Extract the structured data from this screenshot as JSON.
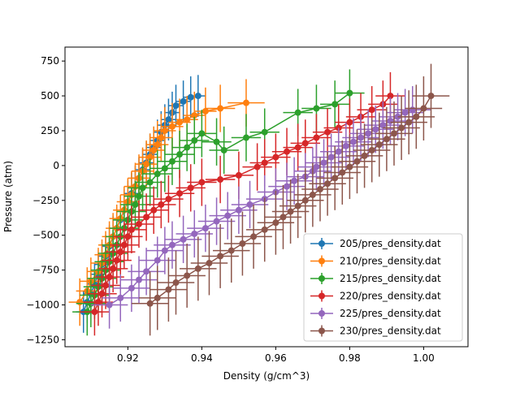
{
  "chart_data": {
    "type": "line",
    "title": "",
    "xlabel": "Density (g/cm^3)",
    "ylabel": "Pressure (atm)",
    "xlim": [
      0.903,
      1.012
    ],
    "ylim": [
      -1300,
      850
    ],
    "xticks": [
      0.92,
      0.94,
      0.96,
      0.98,
      1.0
    ],
    "xtick_labels": [
      "0.92",
      "0.94",
      "0.96",
      "0.98",
      "1.00"
    ],
    "yticks": [
      -1250,
      -1000,
      -750,
      -500,
      -250,
      0,
      250,
      500,
      750
    ],
    "ytick_labels": [
      "−1250",
      "−1000",
      "−750",
      "−500",
      "−250",
      "0",
      "250",
      "500",
      "750"
    ],
    "legend_position": "lower-right",
    "grid": false,
    "series": [
      {
        "name": "205/pres_density.dat",
        "color": "#1f77b4",
        "x": [
          0.908,
          0.909,
          0.91,
          0.911,
          0.912,
          0.913,
          0.914,
          0.915,
          0.916,
          0.917,
          0.918,
          0.919,
          0.92,
          0.921,
          0.922,
          0.923,
          0.924,
          0.925,
          0.926,
          0.927,
          0.928,
          0.929,
          0.93,
          0.931,
          0.932,
          0.933,
          0.935,
          0.937,
          0.939
        ],
        "y": [
          -1050,
          -980,
          -920,
          -850,
          -780,
          -710,
          -650,
          -580,
          -510,
          -450,
          -390,
          -320,
          -260,
          -200,
          -150,
          -90,
          -30,
          20,
          80,
          130,
          180,
          240,
          290,
          330,
          380,
          430,
          460,
          490,
          500
        ],
        "xerr": [
          0.002,
          0.002,
          0.002,
          0.002,
          0.002,
          0.002,
          0.002,
          0.002,
          0.002,
          0.002,
          0.002,
          0.002,
          0.002,
          0.002,
          0.002,
          0.002,
          0.002,
          0.002,
          0.002,
          0.002,
          0.002,
          0.002,
          0.002,
          0.002,
          0.002,
          0.002,
          0.002,
          0.002,
          0.002
        ],
        "yerr": [
          150,
          150,
          150,
          150,
          150,
          150,
          150,
          150,
          150,
          150,
          150,
          150,
          150,
          150,
          150,
          150,
          150,
          150,
          150,
          150,
          150,
          150,
          150,
          150,
          150,
          150,
          150,
          150,
          150
        ]
      },
      {
        "name": "210/pres_density.dat",
        "color": "#ff7f0e",
        "x": [
          0.907,
          0.909,
          0.91,
          0.912,
          0.913,
          0.914,
          0.915,
          0.916,
          0.917,
          0.918,
          0.919,
          0.92,
          0.921,
          0.922,
          0.923,
          0.924,
          0.925,
          0.926,
          0.927,
          0.928,
          0.929,
          0.93,
          0.932,
          0.934,
          0.936,
          0.938,
          0.941,
          0.945,
          0.952
        ],
        "y": [
          -980,
          -900,
          -830,
          -760,
          -700,
          -640,
          -570,
          -510,
          -450,
          -380,
          -320,
          -260,
          -210,
          -150,
          -90,
          -40,
          10,
          60,
          110,
          150,
          200,
          250,
          280,
          310,
          330,
          360,
          390,
          410,
          450
        ],
        "xerr": [
          0.003,
          0.003,
          0.003,
          0.003,
          0.003,
          0.003,
          0.003,
          0.003,
          0.003,
          0.003,
          0.003,
          0.003,
          0.003,
          0.003,
          0.003,
          0.003,
          0.003,
          0.003,
          0.003,
          0.003,
          0.003,
          0.003,
          0.003,
          0.003,
          0.003,
          0.003,
          0.003,
          0.004,
          0.005
        ],
        "yerr": [
          170,
          170,
          170,
          170,
          170,
          170,
          170,
          170,
          170,
          170,
          170,
          170,
          170,
          170,
          170,
          170,
          170,
          170,
          170,
          170,
          170,
          170,
          170,
          170,
          170,
          170,
          170,
          170,
          170
        ]
      },
      {
        "name": "215/pres_density.dat",
        "color": "#2ca02c",
        "x": [
          0.909,
          0.91,
          0.911,
          0.912,
          0.913,
          0.914,
          0.915,
          0.916,
          0.917,
          0.918,
          0.919,
          0.92,
          0.921,
          0.922,
          0.923,
          0.924,
          0.926,
          0.928,
          0.93,
          0.932,
          0.934,
          0.936,
          0.938,
          0.94,
          0.944,
          0.946,
          0.952,
          0.957,
          0.966,
          0.971,
          0.976,
          0.98
        ],
        "y": [
          -1050,
          -990,
          -930,
          -870,
          -810,
          -750,
          -690,
          -630,
          -570,
          -510,
          -450,
          -390,
          -330,
          -280,
          -220,
          -160,
          -120,
          -60,
          -20,
          30,
          80,
          130,
          180,
          230,
          170,
          110,
          200,
          240,
          380,
          410,
          440,
          520
        ],
        "xerr": [
          0.004,
          0.004,
          0.004,
          0.004,
          0.004,
          0.004,
          0.004,
          0.004,
          0.004,
          0.004,
          0.004,
          0.004,
          0.004,
          0.004,
          0.004,
          0.004,
          0.004,
          0.004,
          0.004,
          0.004,
          0.004,
          0.004,
          0.004,
          0.004,
          0.004,
          0.004,
          0.004,
          0.004,
          0.004,
          0.004,
          0.004,
          0.004
        ],
        "yerr": [
          170,
          170,
          170,
          170,
          170,
          170,
          170,
          170,
          170,
          170,
          170,
          170,
          170,
          170,
          170,
          170,
          170,
          170,
          170,
          170,
          170,
          170,
          170,
          170,
          170,
          170,
          170,
          170,
          170,
          170,
          170,
          170
        ]
      },
      {
        "name": "220/pres_density.dat",
        "color": "#d62728",
        "x": [
          0.911,
          0.912,
          0.913,
          0.914,
          0.915,
          0.916,
          0.917,
          0.918,
          0.919,
          0.92,
          0.921,
          0.923,
          0.925,
          0.927,
          0.929,
          0.931,
          0.934,
          0.937,
          0.94,
          0.945,
          0.95,
          0.955,
          0.957,
          0.96,
          0.963,
          0.966,
          0.968,
          0.971,
          0.974,
          0.977,
          0.98,
          0.983,
          0.986,
          0.989,
          0.991
        ],
        "y": [
          -1050,
          -980,
          -920,
          -860,
          -800,
          -740,
          -680,
          -620,
          -570,
          -510,
          -460,
          -420,
          -370,
          -320,
          -280,
          -240,
          -200,
          -160,
          -120,
          -100,
          -70,
          -10,
          20,
          60,
          100,
          130,
          160,
          200,
          240,
          270,
          310,
          350,
          400,
          440,
          500
        ],
        "xerr": [
          0.004,
          0.004,
          0.004,
          0.004,
          0.004,
          0.004,
          0.004,
          0.004,
          0.004,
          0.004,
          0.004,
          0.004,
          0.004,
          0.004,
          0.004,
          0.004,
          0.004,
          0.004,
          0.004,
          0.004,
          0.004,
          0.004,
          0.004,
          0.004,
          0.004,
          0.004,
          0.004,
          0.004,
          0.004,
          0.004,
          0.004,
          0.004,
          0.004,
          0.004,
          0.004
        ],
        "yerr": [
          170,
          170,
          170,
          170,
          170,
          170,
          170,
          170,
          170,
          170,
          170,
          170,
          170,
          170,
          170,
          170,
          170,
          170,
          170,
          170,
          170,
          170,
          170,
          170,
          170,
          170,
          170,
          170,
          170,
          170,
          170,
          170,
          170,
          170,
          170
        ]
      },
      {
        "name": "225/pres_density.dat",
        "color": "#9467bd",
        "x": [
          0.915,
          0.918,
          0.921,
          0.923,
          0.925,
          0.928,
          0.93,
          0.932,
          0.935,
          0.938,
          0.941,
          0.944,
          0.947,
          0.95,
          0.953,
          0.957,
          0.96,
          0.963,
          0.965,
          0.968,
          0.97,
          0.971,
          0.973,
          0.975,
          0.977,
          0.979,
          0.981,
          0.983,
          0.985,
          0.987,
          0.989,
          0.991,
          0.993,
          0.995,
          0.997
        ],
        "y": [
          -1000,
          -950,
          -880,
          -820,
          -760,
          -680,
          -610,
          -570,
          -530,
          -490,
          -450,
          -400,
          -360,
          -320,
          -280,
          -240,
          -190,
          -150,
          -110,
          -80,
          -40,
          -10,
          20,
          60,
          100,
          140,
          170,
          200,
          230,
          260,
          290,
          320,
          350,
          380,
          400
        ],
        "xerr": [
          0.005,
          0.005,
          0.005,
          0.005,
          0.005,
          0.005,
          0.005,
          0.005,
          0.005,
          0.005,
          0.005,
          0.005,
          0.005,
          0.005,
          0.005,
          0.005,
          0.005,
          0.005,
          0.005,
          0.005,
          0.005,
          0.005,
          0.005,
          0.005,
          0.005,
          0.005,
          0.005,
          0.005,
          0.005,
          0.005,
          0.005,
          0.005,
          0.005,
          0.005,
          0.005
        ],
        "yerr": [
          170,
          170,
          170,
          170,
          170,
          170,
          170,
          170,
          170,
          170,
          170,
          170,
          170,
          170,
          170,
          170,
          170,
          170,
          170,
          170,
          170,
          170,
          170,
          170,
          170,
          170,
          170,
          170,
          170,
          170,
          170,
          170,
          170,
          170,
          170
        ]
      },
      {
        "name": "230/pres_density.dat",
        "color": "#8c564b",
        "x": [
          0.926,
          0.928,
          0.931,
          0.933,
          0.936,
          0.939,
          0.942,
          0.945,
          0.948,
          0.951,
          0.954,
          0.957,
          0.96,
          0.962,
          0.964,
          0.966,
          0.968,
          0.97,
          0.972,
          0.974,
          0.976,
          0.978,
          0.98,
          0.982,
          0.984,
          0.986,
          0.988,
          0.99,
          0.992,
          0.994,
          0.996,
          0.998,
          1.0,
          1.002
        ],
        "y": [
          -990,
          -950,
          -890,
          -840,
          -790,
          -740,
          -700,
          -650,
          -610,
          -560,
          -510,
          -460,
          -410,
          -370,
          -330,
          -290,
          -250,
          -210,
          -170,
          -130,
          -90,
          -50,
          -10,
          30,
          70,
          110,
          150,
          190,
          230,
          270,
          310,
          350,
          410,
          500
        ],
        "xerr": [
          0.005,
          0.005,
          0.005,
          0.005,
          0.005,
          0.005,
          0.005,
          0.005,
          0.005,
          0.005,
          0.005,
          0.005,
          0.005,
          0.005,
          0.005,
          0.005,
          0.005,
          0.005,
          0.005,
          0.005,
          0.005,
          0.005,
          0.005,
          0.005,
          0.005,
          0.005,
          0.005,
          0.005,
          0.005,
          0.005,
          0.005,
          0.005,
          0.005,
          0.005
        ],
        "yerr": [
          230,
          230,
          230,
          230,
          230,
          230,
          230,
          230,
          230,
          230,
          230,
          230,
          230,
          230,
          230,
          230,
          230,
          230,
          230,
          230,
          230,
          230,
          230,
          230,
          230,
          230,
          230,
          230,
          230,
          230,
          230,
          230,
          230,
          230
        ]
      }
    ]
  }
}
